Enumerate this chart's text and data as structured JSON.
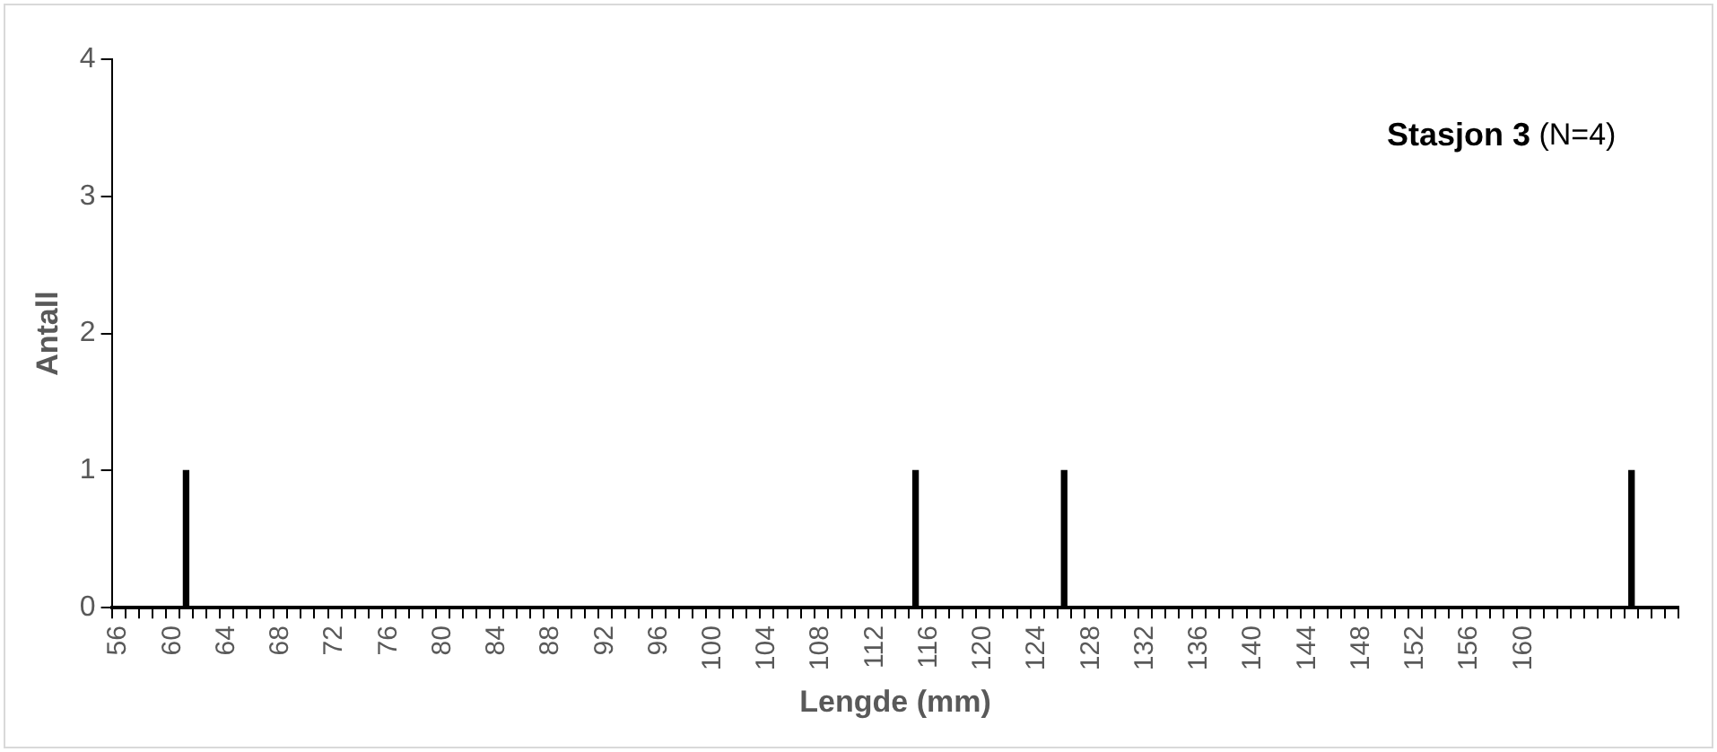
{
  "chart_data": {
    "type": "bar",
    "title": "Stasjon 3",
    "subtitle": "(N=4)",
    "xlabel": "Lengde (mm)",
    "ylabel": "Antall",
    "categories": [
      "56",
      null,
      null,
      null,
      "60",
      null,
      null,
      null,
      "64",
      null,
      null,
      null,
      "68",
      null,
      null,
      null,
      "72",
      null,
      null,
      null,
      "76",
      null,
      null,
      null,
      "80",
      null,
      null,
      null,
      "84",
      null,
      null,
      null,
      "88",
      null,
      null,
      null,
      "92",
      null,
      null,
      null,
      "96",
      null,
      null,
      null,
      "100",
      null,
      null,
      null,
      "104",
      null,
      null,
      null,
      "108",
      null,
      null,
      null,
      "112",
      null,
      null,
      null,
      "116",
      null,
      null,
      null,
      "120",
      null,
      null,
      null,
      "124",
      null,
      null,
      null,
      "128",
      null,
      null,
      null,
      "132",
      null,
      null,
      null,
      "136",
      null,
      null,
      null,
      "140",
      null,
      null,
      null,
      "144",
      null,
      null,
      null,
      "148",
      null,
      null,
      null,
      "152",
      null,
      null,
      null,
      "156",
      null,
      null,
      null,
      "160",
      null,
      null,
      null,
      null,
      null,
      null,
      null,
      null,
      null,
      null,
      null
    ],
    "values": [
      0,
      0,
      0,
      0,
      0,
      1,
      0,
      0,
      0,
      0,
      0,
      0,
      0,
      0,
      0,
      0,
      0,
      0,
      0,
      0,
      0,
      0,
      0,
      0,
      0,
      0,
      0,
      0,
      0,
      0,
      0,
      0,
      0,
      0,
      0,
      0,
      0,
      0,
      0,
      0,
      0,
      0,
      0,
      0,
      0,
      0,
      0,
      0,
      0,
      0,
      0,
      0,
      0,
      0,
      0,
      0,
      0,
      0,
      0,
      1,
      0,
      0,
      0,
      0,
      0,
      0,
      0,
      0,
      0,
      0,
      1,
      0,
      0,
      0,
      0,
      0,
      0,
      0,
      0,
      0,
      0,
      0,
      0,
      0,
      0,
      0,
      0,
      0,
      0,
      0,
      0,
      0,
      0,
      0,
      0,
      0,
      0,
      0,
      0,
      0,
      0,
      0,
      0,
      0,
      0,
      0,
      0,
      0,
      0,
      0,
      0,
      0,
      1,
      0,
      0,
      0
    ],
    "color": "#000000",
    "ylim": [
      0,
      4
    ],
    "yticks": [
      0,
      1,
      2,
      3,
      4
    ],
    "grid": false,
    "legend": false
  }
}
